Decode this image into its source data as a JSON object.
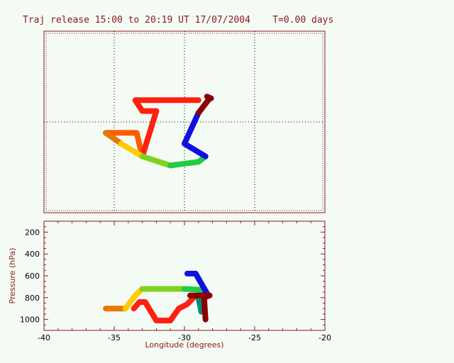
{
  "title": "Traj release 15:00 to 20:19 UT 17/07/2004    T=0.00 days",
  "chart_data": [
    {
      "type": "line",
      "panel": "map",
      "grid": true,
      "xlim": [
        -40,
        -20
      ],
      "tracks": [
        {
          "color": "#e87800",
          "points": [
            [
              -35.6,
              0.44
            ],
            [
              -34.5,
              0.38
            ]
          ]
        },
        {
          "color": "#ffcc00",
          "points": [
            [
              -34.5,
              0.38
            ],
            [
              -33.0,
              0.31
            ]
          ]
        },
        {
          "color": "#7ed321",
          "points": [
            [
              -33.0,
              0.31
            ],
            [
              -31.0,
              0.26
            ]
          ]
        },
        {
          "color": "#22cc44",
          "points": [
            [
              -31.0,
              0.26
            ],
            [
              -29.0,
              0.28
            ],
            [
              -28.5,
              0.31
            ]
          ]
        },
        {
          "color": "#1010e0",
          "points": [
            [
              -28.5,
              0.31
            ],
            [
              -30.0,
              0.38
            ],
            [
              -29.0,
              0.55
            ]
          ]
        },
        {
          "color": "#8b0000",
          "points": [
            [
              -29.0,
              0.55
            ],
            [
              -28.2,
              0.63
            ],
            [
              -28.4,
              0.64
            ],
            [
              -28.1,
              0.63
            ]
          ]
        }
      ],
      "track_red": {
        "color": "#ff2010",
        "points": [
          [
            -33.0,
            0.31
          ],
          [
            -32.0,
            0.56
          ],
          [
            -33.0,
            0.56
          ],
          [
            -33.5,
            0.62
          ],
          [
            -29.0,
            0.62
          ]
        ]
      },
      "track_orange": {
        "color": "#ff5a00",
        "points": [
          [
            -35.6,
            0.44
          ],
          [
            -33.4,
            0.44
          ],
          [
            -33.0,
            0.31
          ]
        ]
      }
    },
    {
      "type": "line",
      "panel": "pressure",
      "xlabel": "Longitude  (degrees)",
      "ylabel": "Pressure  (hPa)",
      "xlim": [
        -40,
        -20
      ],
      "ylim": [
        1100,
        100
      ],
      "xticks": [
        "-40",
        "-35",
        "-30",
        "-25",
        "-20"
      ],
      "yticks": [
        "200",
        "400",
        "600",
        "800",
        "1000"
      ],
      "tracks": [
        {
          "color": "#e87800",
          "points": [
            [
              -35.6,
              900
            ],
            [
              -34.2,
              900
            ]
          ]
        },
        {
          "color": "#ffcc00",
          "points": [
            [
              -34.2,
              900
            ],
            [
              -33.5,
              780
            ],
            [
              -33.0,
              720
            ]
          ]
        },
        {
          "color": "#7ed321",
          "points": [
            [
              -33.0,
              720
            ],
            [
              -30.0,
              720
            ]
          ]
        },
        {
          "color": "#22cc44",
          "points": [
            [
              -30.0,
              720
            ],
            [
              -28.6,
              730
            ],
            [
              -28.8,
              900
            ]
          ]
        },
        {
          "color": "#1010e0",
          "points": [
            [
              -29.8,
              580
            ],
            [
              -29.2,
              580
            ],
            [
              -28.4,
              760
            ],
            [
              -29.0,
              800
            ]
          ]
        },
        {
          "color": "#008b7a",
          "points": [
            [
              -29.0,
              800
            ],
            [
              -28.8,
              930
            ]
          ]
        },
        {
          "color": "#8b0000",
          "points": [
            [
              -29.6,
              780
            ],
            [
              -28.2,
              780
            ],
            [
              -28.6,
              800
            ],
            [
              -28.5,
              1000
            ]
          ]
        }
      ],
      "track_red": {
        "color": "#ff2010",
        "points": [
          [
            -33.6,
            900
          ],
          [
            -33.2,
            840
          ],
          [
            -32.8,
            840
          ],
          [
            -32.0,
            1010
          ],
          [
            -31.0,
            1010
          ],
          [
            -30.4,
            900
          ],
          [
            -29.8,
            860
          ],
          [
            -29.2,
            780
          ],
          [
            -28.6,
            780
          ]
        ]
      }
    }
  ]
}
